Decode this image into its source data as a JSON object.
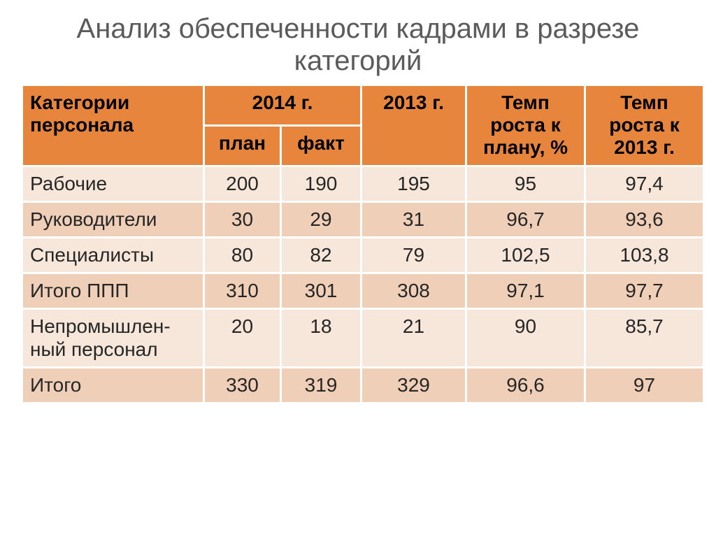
{
  "title": "Анализ обеспеченности кадрами в разрезе категорий",
  "table": {
    "type": "table",
    "header_bg": "#e8853d",
    "row_bg_a": "#f7e6da",
    "row_bg_b": "#efcfb7",
    "border_color": "#ffffff",
    "title_color": "#5b5b5b",
    "text_color": "#262626",
    "title_fontsize": 40,
    "cell_fontsize": 28,
    "columns": {
      "category": "Категории персонала",
      "y2014": "2014 г.",
      "plan": "план",
      "fact": "факт",
      "y2013": "2013 г.",
      "growth_plan": "Темп роста к плану, %",
      "growth_2013": "Темп роста к 2013 г."
    },
    "col_widths": {
      "category": 260,
      "plan": 110,
      "fact": 115,
      "y2013": 150,
      "growth_plan": 170,
      "growth_2013": 170
    },
    "rows": [
      {
        "category": "Рабочие",
        "plan": "200",
        "fact": "190",
        "y2013": "195",
        "growth_plan": "95",
        "growth_2013": "97,4"
      },
      {
        "category": "Руководители",
        "plan": "30",
        "fact": "29",
        "y2013": "31",
        "growth_plan": "96,7",
        "growth_2013": "93,6"
      },
      {
        "category": "Специалисты",
        "plan": "80",
        "fact": "82",
        "y2013": "79",
        "growth_plan": "102,5",
        "growth_2013": "103,8"
      },
      {
        "category": "Итого ППП",
        "plan": "310",
        "fact": "301",
        "y2013": "308",
        "growth_plan": "97,1",
        "growth_2013": "97,7"
      },
      {
        "category": "Непромышлен-ный персонал",
        "plan": "20",
        "fact": "18",
        "y2013": "21",
        "growth_plan": "90",
        "growth_2013": "85,7"
      },
      {
        "category": "Итого",
        "plan": "330",
        "fact": "319",
        "y2013": "329",
        "growth_plan": "96,6",
        "growth_2013": "97"
      }
    ]
  }
}
